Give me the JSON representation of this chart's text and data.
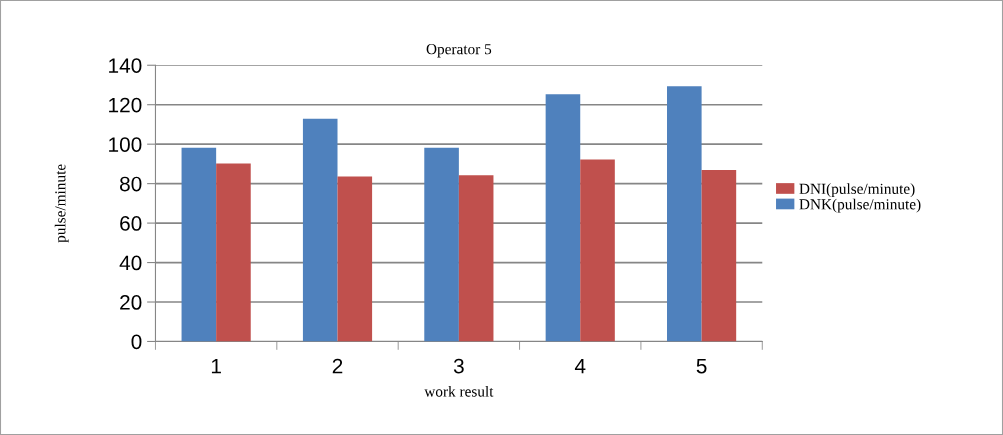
{
  "chart_data": {
    "type": "bar",
    "title": "Operator 5",
    "xlabel": "work result",
    "ylabel": "pulse/minute",
    "categories": [
      "1",
      "2",
      "3",
      "4",
      "5"
    ],
    "series": [
      {
        "name": "DNK(pulse/minute)",
        "color": "#4f81bd",
        "values": [
          98.2,
          112.9,
          98.2,
          125.3,
          129.3
        ]
      },
      {
        "name": "DNI(pulse/minute)",
        "color": "#c0504d",
        "values": [
          90.2,
          83.6,
          84.3,
          92.2,
          86.9
        ]
      }
    ],
    "ylim": [
      0,
      140
    ],
    "yticks": [
      0,
      20,
      40,
      60,
      80,
      100,
      120,
      140
    ],
    "grid": "y",
    "legend": "right"
  }
}
